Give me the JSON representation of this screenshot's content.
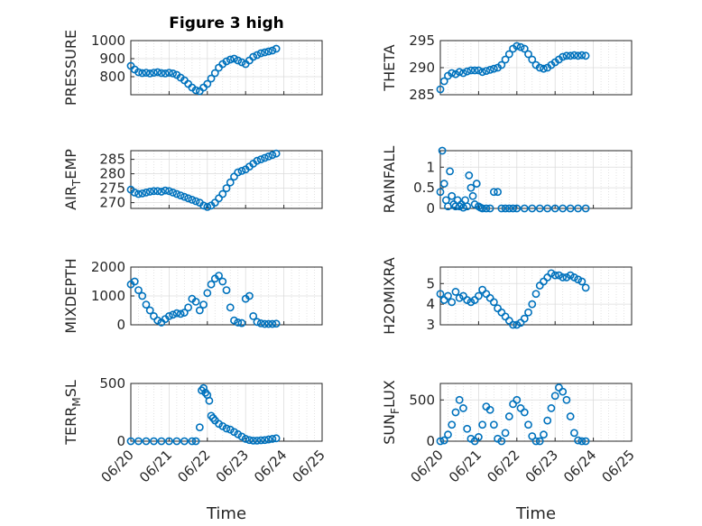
{
  "figure": {
    "title": "Figure 3 high"
  },
  "colors": {
    "marker": "#0072BD",
    "axis": "#262626",
    "grid": "#dcdcdc"
  },
  "xaxis": {
    "label": "Time",
    "ticks": [
      "06/20",
      "06/21",
      "06/22",
      "06/23",
      "06/24",
      "06/25"
    ]
  },
  "chart_data": [
    {
      "type": "scatter",
      "marker": "circle",
      "ylabel": "PRESSURE",
      "title": "Figure 3 high",
      "ylim": [
        700,
        1000
      ],
      "yticks": [
        "800",
        "900",
        "1000"
      ],
      "grid": true,
      "x": [
        0.0,
        0.1,
        0.2,
        0.3,
        0.4,
        0.5,
        0.6,
        0.7,
        0.8,
        0.9,
        1.0,
        1.1,
        1.2,
        1.3,
        1.4,
        1.5,
        1.6,
        1.7,
        1.8,
        1.9,
        2.0,
        2.1,
        2.2,
        2.3,
        2.4,
        2.5,
        2.6,
        2.7,
        2.8,
        2.9,
        3.0,
        3.1,
        3.2,
        3.3,
        3.4,
        3.5,
        3.6,
        3.7,
        3.8
      ],
      "y": [
        860,
        840,
        825,
        820,
        822,
        818,
        822,
        825,
        820,
        818,
        822,
        818,
        810,
        795,
        780,
        760,
        740,
        725,
        720,
        740,
        760,
        790,
        820,
        850,
        870,
        885,
        895,
        900,
        890,
        880,
        870,
        890,
        910,
        920,
        930,
        935,
        940,
        945,
        955
      ]
    },
    {
      "type": "scatter",
      "marker": "circle",
      "ylabel": "THETA",
      "ylim": [
        285,
        295
      ],
      "yticks": [
        "285",
        "290",
        "295"
      ],
      "grid": true,
      "x": [
        0.0,
        0.1,
        0.2,
        0.3,
        0.4,
        0.5,
        0.6,
        0.7,
        0.8,
        0.9,
        1.0,
        1.1,
        1.2,
        1.3,
        1.4,
        1.5,
        1.6,
        1.7,
        1.8,
        1.9,
        2.0,
        2.1,
        2.2,
        2.3,
        2.4,
        2.5,
        2.6,
        2.7,
        2.8,
        2.9,
        3.0,
        3.1,
        3.2,
        3.3,
        3.4,
        3.5,
        3.6,
        3.7,
        3.8
      ],
      "y": [
        286,
        287.5,
        288.5,
        289,
        288.8,
        289.2,
        289,
        289.3,
        289.5,
        289.5,
        289.5,
        289.2,
        289.4,
        289.6,
        289.8,
        290,
        290.5,
        291.5,
        292.5,
        293.5,
        294,
        293.8,
        293.5,
        292.5,
        291.5,
        290.5,
        290,
        289.8,
        290,
        290.5,
        291,
        291.5,
        292,
        292.2,
        292.2,
        292.3,
        292.2,
        292.3,
        292.2
      ]
    },
    {
      "type": "scatter",
      "marker": "circle",
      "ylabel": "AIR_TEMP",
      "ylim": [
        268,
        288
      ],
      "yticks": [
        "270",
        "275",
        "280",
        "285"
      ],
      "grid": true,
      "x": [
        0.0,
        0.1,
        0.2,
        0.3,
        0.4,
        0.5,
        0.6,
        0.7,
        0.8,
        0.9,
        1.0,
        1.1,
        1.2,
        1.3,
        1.4,
        1.5,
        1.6,
        1.7,
        1.8,
        1.9,
        2.0,
        2.1,
        2.2,
        2.3,
        2.4,
        2.5,
        2.6,
        2.7,
        2.8,
        2.9,
        3.0,
        3.1,
        3.2,
        3.3,
        3.4,
        3.5,
        3.6,
        3.7,
        3.8
      ],
      "y": [
        274.5,
        273.5,
        273,
        273.2,
        273.5,
        273.8,
        274,
        274,
        273.8,
        274.2,
        274,
        273.5,
        273,
        272.5,
        272,
        271.5,
        271,
        270.5,
        270,
        269,
        268.5,
        269,
        270,
        271.5,
        273,
        275,
        277,
        279,
        280.5,
        281,
        281.5,
        282.5,
        283.5,
        284.5,
        285,
        285.5,
        286,
        286.5,
        287
      ]
    },
    {
      "type": "scatter",
      "marker": "circle",
      "ylabel": "RAINFALL",
      "ylim": [
        0,
        1.4
      ],
      "yticks": [
        "0",
        "0.5",
        "1"
      ],
      "grid": true,
      "x": [
        0.0,
        0.05,
        0.1,
        0.15,
        0.2,
        0.25,
        0.3,
        0.35,
        0.4,
        0.45,
        0.5,
        0.55,
        0.6,
        0.65,
        0.7,
        0.75,
        0.8,
        0.85,
        0.9,
        0.95,
        1.0,
        1.05,
        1.1,
        1.2,
        1.3,
        1.4,
        1.5,
        1.6,
        1.7,
        1.8,
        1.9,
        2.0,
        2.2,
        2.4,
        2.6,
        2.8,
        3.0,
        3.2,
        3.4,
        3.6,
        3.8
      ],
      "y": [
        0.4,
        1.4,
        0.6,
        0.2,
        0.05,
        0.9,
        0.3,
        0.1,
        0.05,
        0.2,
        0.05,
        0.1,
        0.02,
        0.2,
        0.05,
        0.8,
        0.5,
        0.3,
        0.1,
        0.6,
        0.05,
        0.02,
        0,
        0,
        0,
        0.4,
        0.4,
        0,
        0,
        0,
        0,
        0,
        0,
        0,
        0,
        0,
        0,
        0,
        0,
        0,
        0
      ]
    },
    {
      "type": "scatter",
      "marker": "circle",
      "ylabel": "MIXDEPTH",
      "ylim": [
        0,
        2000
      ],
      "yticks": [
        "0",
        "1000",
        "2000"
      ],
      "grid": true,
      "x": [
        0.0,
        0.1,
        0.2,
        0.3,
        0.4,
        0.5,
        0.6,
        0.7,
        0.8,
        0.9,
        1.0,
        1.1,
        1.2,
        1.3,
        1.4,
        1.5,
        1.6,
        1.7,
        1.8,
        1.9,
        2.0,
        2.1,
        2.2,
        2.3,
        2.4,
        2.5,
        2.6,
        2.7,
        2.8,
        2.9,
        3.0,
        3.1,
        3.2,
        3.3,
        3.4,
        3.5,
        3.6,
        3.7,
        3.8
      ],
      "y": [
        1400,
        1500,
        1200,
        1000,
        700,
        500,
        300,
        150,
        80,
        200,
        300,
        350,
        400,
        380,
        420,
        600,
        900,
        800,
        500,
        700,
        1100,
        1400,
        1600,
        1700,
        1500,
        1200,
        600,
        150,
        80,
        60,
        900,
        1000,
        300,
        100,
        50,
        30,
        30,
        30,
        40
      ]
    },
    {
      "type": "scatter",
      "marker": "circle",
      "ylabel": "H2OMIXRA",
      "ylim": [
        3,
        5.8
      ],
      "yticks": [
        "3",
        "4",
        "5"
      ],
      "grid": true,
      "x": [
        0.0,
        0.1,
        0.2,
        0.3,
        0.4,
        0.5,
        0.6,
        0.7,
        0.8,
        0.9,
        1.0,
        1.1,
        1.2,
        1.3,
        1.4,
        1.5,
        1.6,
        1.7,
        1.8,
        1.9,
        2.0,
        2.1,
        2.2,
        2.3,
        2.4,
        2.5,
        2.6,
        2.7,
        2.8,
        2.9,
        3.0,
        3.1,
        3.2,
        3.3,
        3.4,
        3.5,
        3.6,
        3.7,
        3.8
      ],
      "y": [
        4.5,
        4.2,
        4.4,
        4.1,
        4.6,
        4.3,
        4.4,
        4.2,
        4.1,
        4.2,
        4.4,
        4.7,
        4.5,
        4.3,
        4.1,
        3.8,
        3.6,
        3.4,
        3.2,
        3.0,
        3.0,
        3.1,
        3.3,
        3.6,
        4.0,
        4.5,
        4.9,
        5.1,
        5.3,
        5.5,
        5.4,
        5.4,
        5.3,
        5.3,
        5.4,
        5.3,
        5.2,
        5.1,
        4.8
      ]
    },
    {
      "type": "scatter",
      "marker": "circle",
      "ylabel": "TERR_MSL",
      "ylim": [
        0,
        500
      ],
      "yticks": [
        "0",
        "500"
      ],
      "grid": true,
      "x": [
        0.0,
        0.2,
        0.4,
        0.6,
        0.8,
        1.0,
        1.2,
        1.4,
        1.6,
        1.7,
        1.8,
        1.85,
        1.9,
        1.95,
        2.0,
        2.05,
        2.1,
        2.15,
        2.2,
        2.3,
        2.4,
        2.5,
        2.6,
        2.7,
        2.8,
        2.9,
        3.0,
        3.1,
        3.2,
        3.3,
        3.4,
        3.5,
        3.6,
        3.7,
        3.8
      ],
      "y": [
        0,
        0,
        0,
        0,
        0,
        0,
        0,
        0,
        0,
        0,
        120,
        440,
        460,
        420,
        400,
        350,
        220,
        200,
        180,
        150,
        130,
        110,
        100,
        80,
        60,
        40,
        20,
        10,
        5,
        5,
        8,
        10,
        15,
        20,
        25
      ]
    },
    {
      "type": "scatter",
      "marker": "circle",
      "ylabel": "SUN_FLUX",
      "ylim": [
        0,
        700
      ],
      "yticks": [
        "0",
        "500"
      ],
      "grid": true,
      "x": [
        0.0,
        0.1,
        0.2,
        0.3,
        0.4,
        0.5,
        0.6,
        0.7,
        0.8,
        0.9,
        1.0,
        1.1,
        1.2,
        1.3,
        1.4,
        1.5,
        1.6,
        1.7,
        1.8,
        1.9,
        2.0,
        2.1,
        2.2,
        2.3,
        2.4,
        2.5,
        2.6,
        2.7,
        2.8,
        2.9,
        3.0,
        3.1,
        3.2,
        3.3,
        3.4,
        3.5,
        3.6,
        3.7,
        3.8
      ],
      "y": [
        0,
        10,
        80,
        200,
        350,
        500,
        400,
        150,
        30,
        0,
        50,
        200,
        420,
        380,
        200,
        30,
        0,
        100,
        300,
        450,
        500,
        400,
        350,
        200,
        60,
        0,
        0,
        80,
        250,
        400,
        550,
        650,
        600,
        500,
        300,
        100,
        10,
        0,
        0
      ]
    }
  ]
}
